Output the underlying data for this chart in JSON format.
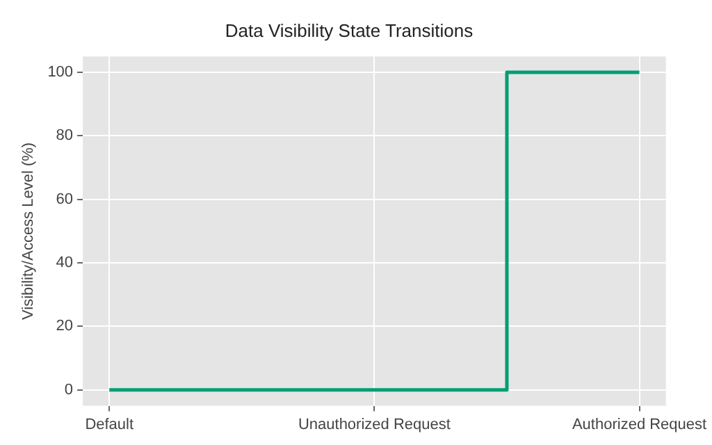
{
  "chart_data": {
    "type": "step",
    "title": "Data Visibility State Transitions",
    "ylabel": "Visibility/Access Level (%)",
    "categories": [
      "Default",
      "Unauthorized Request",
      "Authorized Request"
    ],
    "series": [
      {
        "color": "#009e73",
        "values": [
          0,
          0,
          100
        ]
      }
    ],
    "ylim": [
      -5,
      105
    ],
    "yticks": [
      0,
      20,
      40,
      60,
      80,
      100
    ],
    "grid": true,
    "legend": false
  }
}
